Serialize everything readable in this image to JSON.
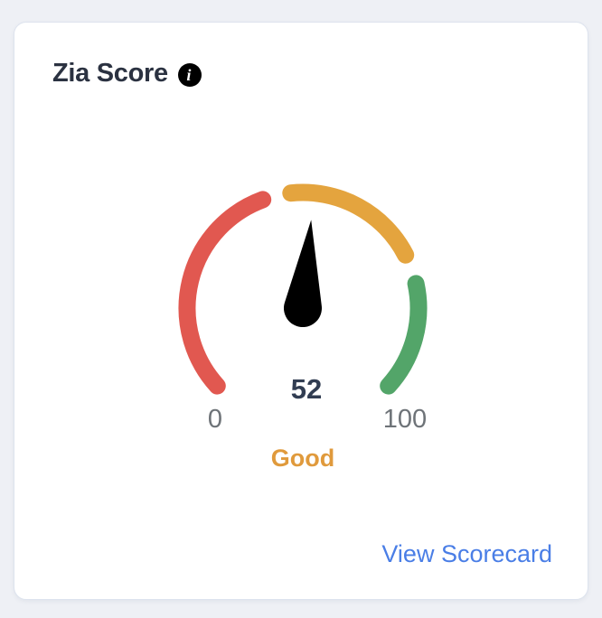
{
  "page": {
    "background_color": "#eef0f5"
  },
  "card": {
    "title": "Zia Score",
    "info_icon_glyph": "i",
    "link_label": "View Scorecard",
    "link_color": "#4a7ee6"
  },
  "chart_data": {
    "type": "gauge",
    "title": "Zia Score",
    "min": 0,
    "max": 100,
    "value": 52,
    "status_label": "Good",
    "status_color": "#e09a3c",
    "value_color": "#313d52",
    "tick_label_color": "#6e7378",
    "needle_color": "#000000",
    "sweep_degrees": 270,
    "segments": [
      {
        "name": "low",
        "color": "#e15850",
        "from": 1,
        "to": 42.5
      },
      {
        "name": "medium",
        "color": "#e4a43e",
        "from": 47.8,
        "to": 73.2
      },
      {
        "name": "high",
        "color": "#53a569",
        "from": 78.8,
        "to": 99
      }
    ]
  }
}
